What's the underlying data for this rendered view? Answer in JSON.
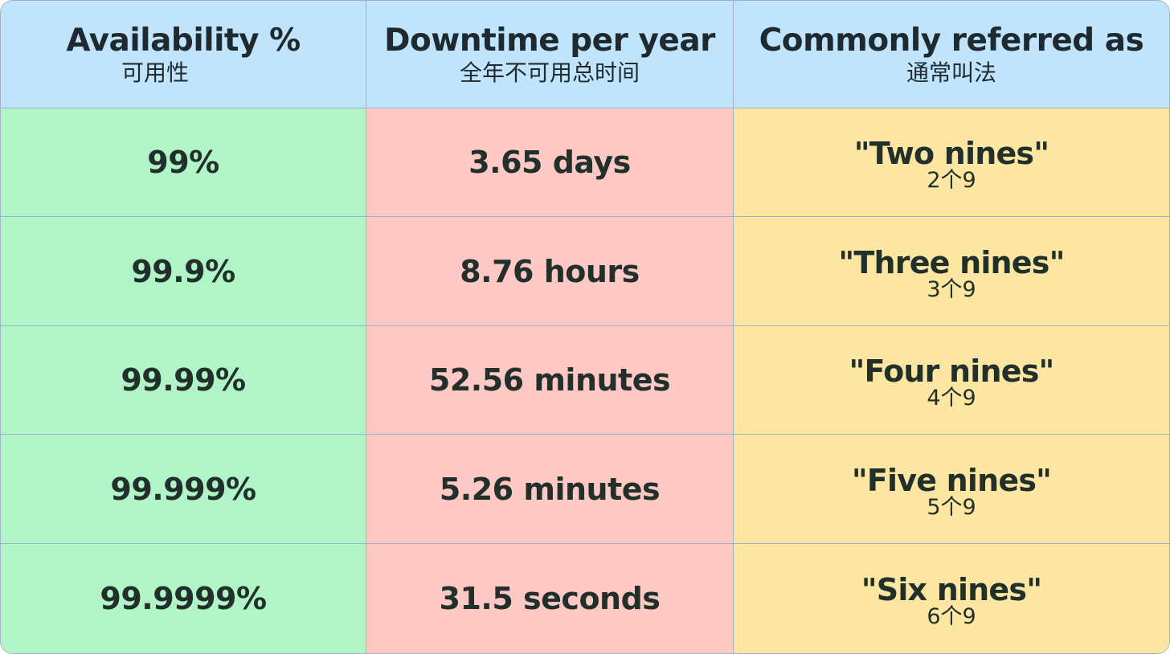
{
  "headers": [
    {
      "title": "Availability %",
      "subtitle": "可用性"
    },
    {
      "title": "Downtime per year",
      "subtitle": "全年不可用总时间"
    },
    {
      "title": "Commonly referred as",
      "subtitle": "通常叫法"
    }
  ],
  "rows": [
    {
      "availability": "99%",
      "downtime": "3.65 days",
      "alias": "\"Two nines\"",
      "alias_sub": "2个9"
    },
    {
      "availability": "99.9%",
      "downtime": "8.76 hours",
      "alias": "\"Three nines\"",
      "alias_sub": "3个9"
    },
    {
      "availability": "99.99%",
      "downtime": "52.56 minutes",
      "alias": "\"Four nines\"",
      "alias_sub": "4个9"
    },
    {
      "availability": "99.999%",
      "downtime": "5.26 minutes",
      "alias": "\"Five nines\"",
      "alias_sub": "5个9"
    },
    {
      "availability": "99.9999%",
      "downtime": "31.5 seconds",
      "alias": "\"Six nines\"",
      "alias_sub": "6个9"
    }
  ],
  "colors": {
    "header": "#c0e4fb",
    "availability_column": "#b1f4c8",
    "downtime_column": "#fec8c4",
    "alias_column": "#fde6a2",
    "grid_line": "#9fb3c0",
    "text": "#22302b"
  }
}
